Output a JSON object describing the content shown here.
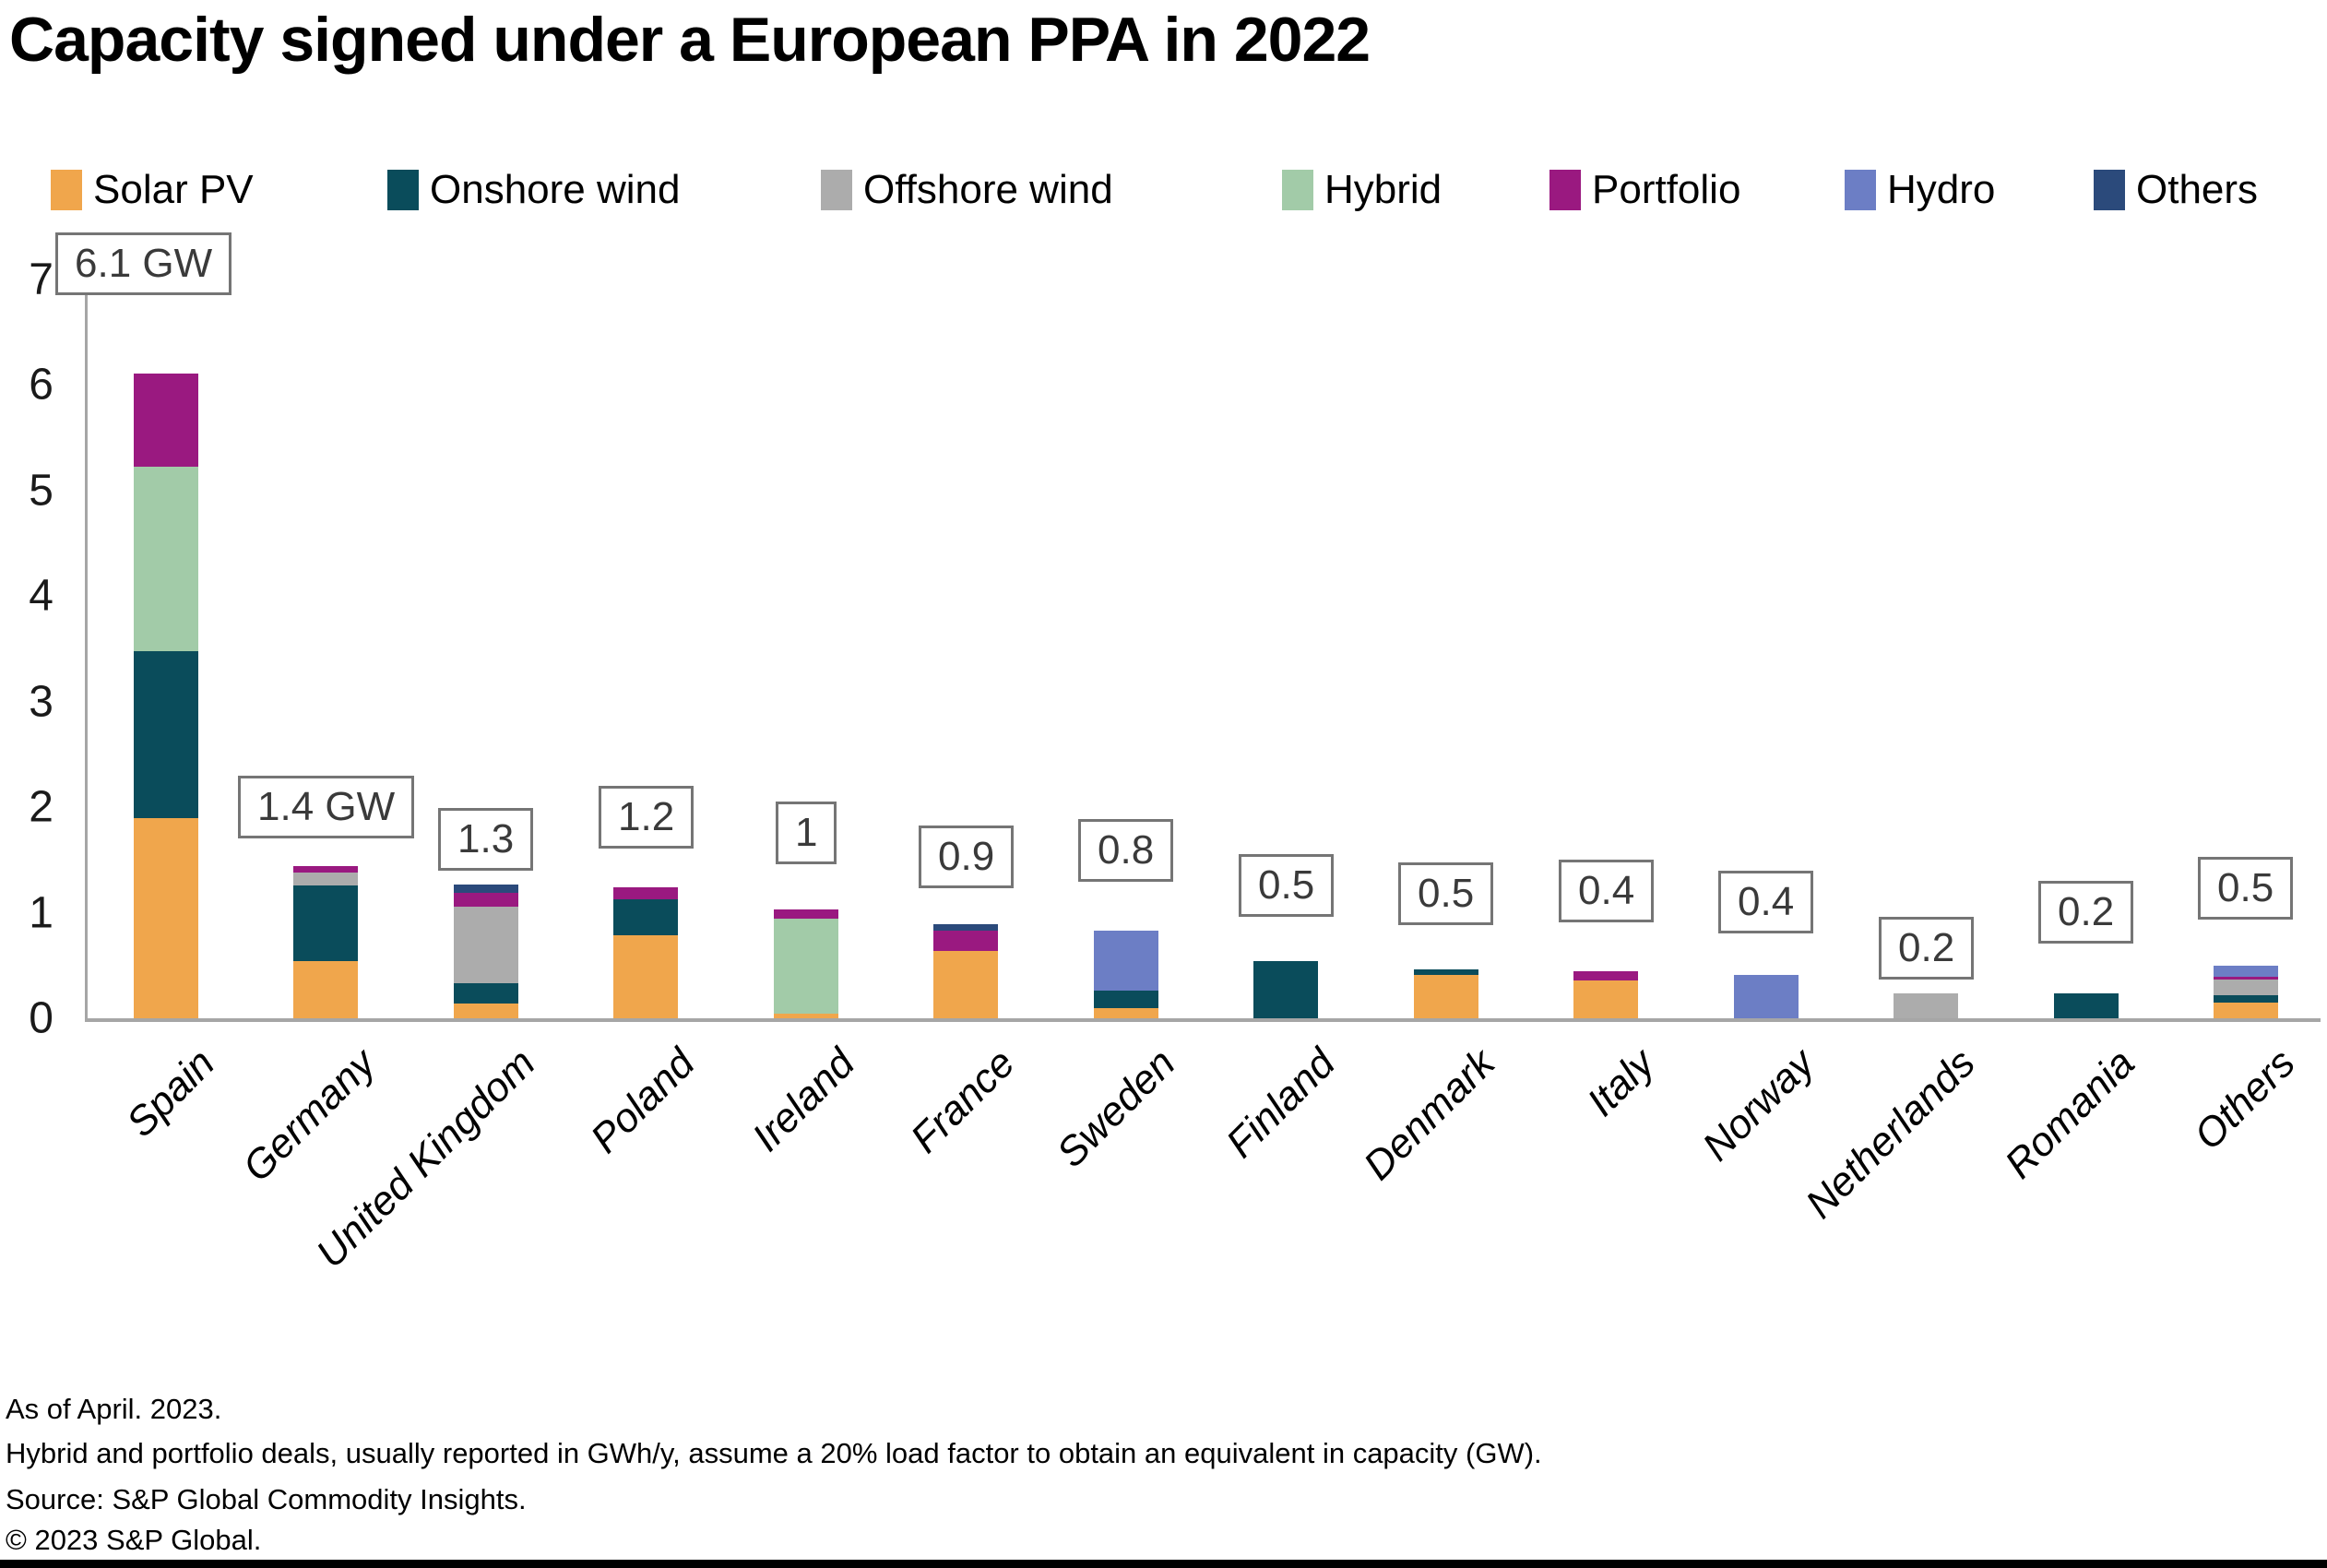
{
  "title": "Capacity signed under a European PPA in 2022",
  "footnotes": [
    "As of April. 2023.",
    "Hybrid and portfolio deals, usually reported in GWh/y, assume a 20% load factor to obtain an equivalent in capacity (GW).",
    "Source: S&P Global Commodity Insights.",
    "© 2023 S&P Global."
  ],
  "colors": {
    "axis": "#A6A6A6",
    "label_border": "#757575",
    "label_text": "#3A3A3A"
  },
  "chart_data": {
    "type": "bar",
    "stacked": true,
    "title": "Capacity signed under a European PPA in 2022",
    "unit": "GW",
    "xlabel": "",
    "ylabel": "",
    "ylim": [
      0,
      7
    ],
    "yticks": [
      0,
      1,
      2,
      3,
      4,
      5,
      6,
      7
    ],
    "grid": false,
    "legend_position": "top",
    "categories": [
      "Spain",
      "Germany",
      "United Kingdom",
      "Poland",
      "Ireland",
      "France",
      "Sweden",
      "Finland",
      "Denmark",
      "Italy",
      "Norway",
      "Netherlands",
      "Romania",
      "Others"
    ],
    "bar_total_labels": [
      "6.1 GW",
      "1.4 GW",
      "1.3",
      "1.2",
      "1",
      "0.9",
      "0.8",
      "0.5",
      "0.5",
      "0.4",
      "0.4",
      "0.2",
      "0.2",
      "0.5"
    ],
    "series": [
      {
        "name": "Solar PV",
        "color": "#F0A64C",
        "values": [
          1.9,
          0.54,
          0.14,
          0.79,
          0.04,
          0.64,
          0.1,
          0,
          0.41,
          0.36,
          0,
          0,
          0,
          0.15
        ]
      },
      {
        "name": "Onshore wind",
        "color": "#0A4C5B",
        "values": [
          1.58,
          0.72,
          0.19,
          0.34,
          0,
          0,
          0.16,
          0.54,
          0.05,
          0,
          0,
          0,
          0.24,
          0.07
        ]
      },
      {
        "name": "Offshore wind",
        "color": "#ACACAC",
        "values": [
          0,
          0.12,
          0.73,
          0,
          0,
          0,
          0,
          0,
          0,
          0,
          0,
          0.24,
          0,
          0.15
        ]
      },
      {
        "name": "Hybrid",
        "color": "#A2CBA8",
        "values": [
          1.75,
          0,
          0,
          0,
          0.9,
          0,
          0,
          0,
          0,
          0,
          0,
          0,
          0,
          0
        ]
      },
      {
        "name": "Portfolio",
        "color": "#9A1980",
        "values": [
          0.88,
          0.06,
          0.13,
          0.11,
          0.09,
          0.19,
          0,
          0,
          0,
          0.09,
          0,
          0,
          0,
          0.02
        ]
      },
      {
        "name": "Hydro",
        "color": "#6C7EC5",
        "values": [
          0,
          0,
          0,
          0,
          0,
          0,
          0.57,
          0,
          0,
          0,
          0.41,
          0,
          0,
          0.11
        ]
      },
      {
        "name": "Others",
        "color": "#2B4A7B",
        "values": [
          0,
          0,
          0.08,
          0,
          0,
          0.06,
          0,
          0,
          0,
          0,
          0,
          0,
          0,
          0
        ]
      }
    ]
  }
}
